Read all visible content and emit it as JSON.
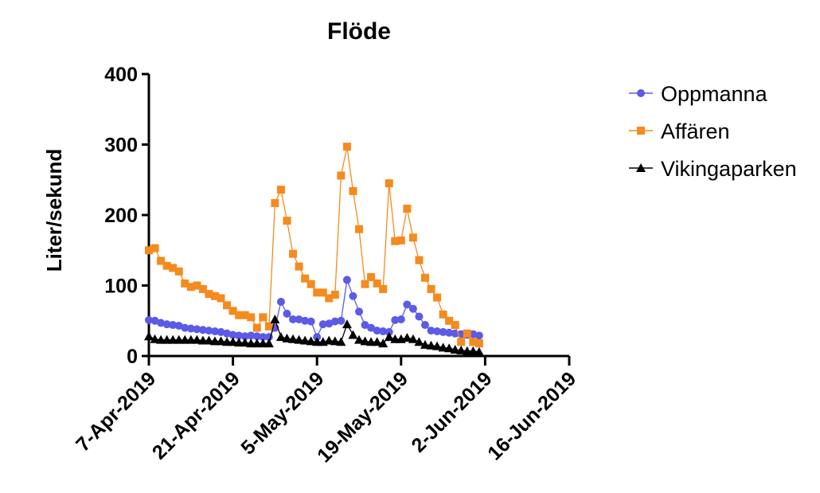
{
  "chart_data": {
    "type": "line",
    "title": "Flöde",
    "ylabel": "Liter/sekund",
    "xlabel": "",
    "ylim": [
      0,
      400
    ],
    "yticks": [
      "0",
      "100",
      "200",
      "300",
      "400"
    ],
    "xlim": [
      "2019-04-07",
      "2019-06-16"
    ],
    "xticks": [
      "7-Apr-2019",
      "21-Apr-2019",
      "5-May-2019",
      "19-May-2019",
      "2-Jun-2019",
      "16-Jun-2019"
    ],
    "legend_position": "top-right",
    "grid": false,
    "x": [
      "2019-04-07",
      "2019-04-08",
      "2019-04-09",
      "2019-04-10",
      "2019-04-11",
      "2019-04-12",
      "2019-04-13",
      "2019-04-14",
      "2019-04-15",
      "2019-04-16",
      "2019-04-17",
      "2019-04-18",
      "2019-04-19",
      "2019-04-20",
      "2019-04-21",
      "2019-04-22",
      "2019-04-23",
      "2019-04-24",
      "2019-04-25",
      "2019-04-26",
      "2019-04-27",
      "2019-04-28",
      "2019-04-29",
      "2019-04-30",
      "2019-05-01",
      "2019-05-02",
      "2019-05-03",
      "2019-05-04",
      "2019-05-05",
      "2019-05-06",
      "2019-05-07",
      "2019-05-08",
      "2019-05-09",
      "2019-05-10",
      "2019-05-11",
      "2019-05-12",
      "2019-05-13",
      "2019-05-14",
      "2019-05-15",
      "2019-05-16",
      "2019-05-17",
      "2019-05-18",
      "2019-05-19",
      "2019-05-20",
      "2019-05-21",
      "2019-05-22",
      "2019-05-23",
      "2019-05-24",
      "2019-05-25",
      "2019-05-26",
      "2019-05-27",
      "2019-05-28",
      "2019-05-29",
      "2019-05-30",
      "2019-05-31",
      "2019-06-01"
    ],
    "series": [
      {
        "name": "Oppmanna",
        "color": "#5b5be6",
        "marker": "circle",
        "values": [
          51,
          50,
          47,
          45,
          44,
          43,
          40,
          39,
          38,
          37,
          36,
          35,
          34,
          32,
          30,
          29,
          28,
          29,
          28,
          27,
          27,
          40,
          77,
          60,
          52,
          52,
          50,
          49,
          27,
          45,
          46,
          49,
          50,
          108,
          85,
          63,
          44,
          40,
          36,
          35,
          34,
          51,
          52,
          73,
          67,
          56,
          44,
          36,
          35,
          34,
          33,
          32,
          31,
          30,
          31,
          29
        ]
      },
      {
        "name": "Affären",
        "color": "#f58a1f",
        "marker": "square",
        "values": [
          150,
          153,
          135,
          128,
          125,
          120,
          103,
          98,
          100,
          95,
          88,
          85,
          82,
          72,
          64,
          58,
          58,
          55,
          40,
          55,
          42,
          217,
          236,
          192,
          145,
          127,
          110,
          102,
          90,
          90,
          82,
          87,
          256,
          297,
          234,
          180,
          102,
          112,
          103,
          95,
          245,
          163,
          164,
          209,
          168,
          136,
          111,
          95,
          83,
          59,
          50,
          44,
          20,
          32,
          20,
          18
        ]
      },
      {
        "name": "Vikingaparken",
        "color": "#000000",
        "marker": "triangle",
        "values": [
          28,
          24,
          23,
          23,
          23,
          23,
          23,
          23,
          23,
          22,
          22,
          21,
          21,
          20,
          20,
          19,
          19,
          18,
          18,
          18,
          18,
          52,
          27,
          25,
          24,
          23,
          22,
          21,
          20,
          20,
          22,
          21,
          20,
          45,
          30,
          23,
          21,
          20,
          20,
          18,
          27,
          24,
          24,
          26,
          24,
          20,
          16,
          15,
          14,
          12,
          11,
          9,
          8,
          7,
          7,
          6
        ]
      }
    ]
  }
}
